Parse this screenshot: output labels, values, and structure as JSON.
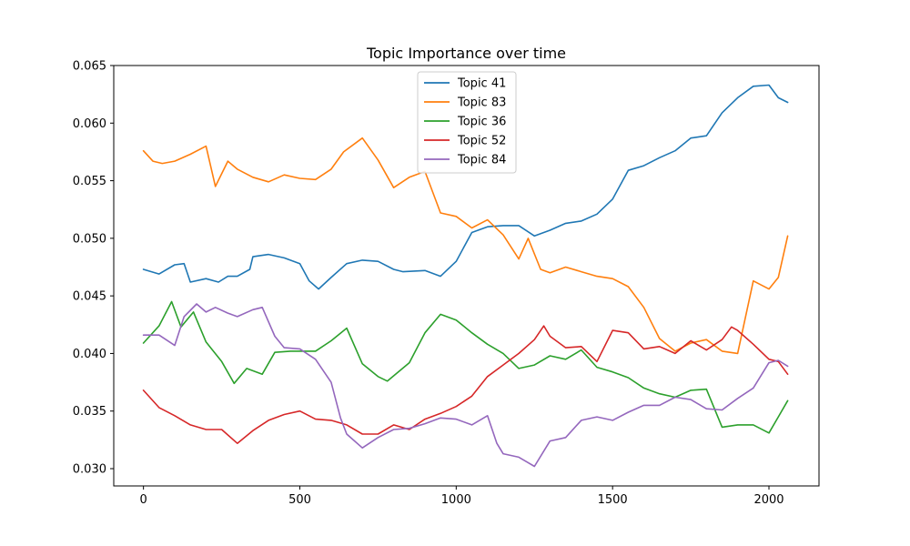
{
  "chart_data": {
    "type": "line",
    "title": "Topic Importance over time",
    "xlabel": "",
    "ylabel": "",
    "xlim": [
      -95,
      2160
    ],
    "ylim": [
      0.0285,
      0.065
    ],
    "x_ticks": [
      0,
      500,
      1000,
      1500,
      2000
    ],
    "y_ticks": [
      0.03,
      0.035,
      0.04,
      0.045,
      0.05,
      0.055,
      0.06,
      0.065
    ],
    "y_tick_labels": [
      "0.030",
      "0.035",
      "0.040",
      "0.045",
      "0.050",
      "0.055",
      "0.060",
      "0.065"
    ],
    "grid": false,
    "legend_position": "top-center",
    "series": [
      {
        "name": "Topic 41",
        "color": "#1f77b4",
        "points": [
          [
            0,
            0.0473
          ],
          [
            50,
            0.0469
          ],
          [
            100,
            0.0477
          ],
          [
            130,
            0.0478
          ],
          [
            150,
            0.0462
          ],
          [
            200,
            0.0465
          ],
          [
            240,
            0.0462
          ],
          [
            270,
            0.0467
          ],
          [
            300,
            0.0467
          ],
          [
            340,
            0.0473
          ],
          [
            350,
            0.0484
          ],
          [
            400,
            0.0486
          ],
          [
            450,
            0.0483
          ],
          [
            500,
            0.0478
          ],
          [
            530,
            0.0463
          ],
          [
            560,
            0.0456
          ],
          [
            600,
            0.0466
          ],
          [
            650,
            0.0478
          ],
          [
            700,
            0.0481
          ],
          [
            750,
            0.048
          ],
          [
            800,
            0.0473
          ],
          [
            830,
            0.0471
          ],
          [
            900,
            0.0472
          ],
          [
            950,
            0.0467
          ],
          [
            1000,
            0.048
          ],
          [
            1050,
            0.0505
          ],
          [
            1100,
            0.051
          ],
          [
            1150,
            0.0511
          ],
          [
            1200,
            0.0511
          ],
          [
            1250,
            0.0502
          ],
          [
            1300,
            0.0507
          ],
          [
            1350,
            0.0513
          ],
          [
            1400,
            0.0515
          ],
          [
            1450,
            0.0521
          ],
          [
            1500,
            0.0534
          ],
          [
            1550,
            0.0559
          ],
          [
            1600,
            0.0563
          ],
          [
            1650,
            0.057
          ],
          [
            1700,
            0.0576
          ],
          [
            1750,
            0.0587
          ],
          [
            1800,
            0.0589
          ],
          [
            1850,
            0.0609
          ],
          [
            1900,
            0.0622
          ],
          [
            1950,
            0.0632
          ],
          [
            2000,
            0.0633
          ],
          [
            2030,
            0.0622
          ],
          [
            2060,
            0.0618
          ]
        ]
      },
      {
        "name": "Topic 83",
        "color": "#ff7f0e",
        "points": [
          [
            0,
            0.0576
          ],
          [
            30,
            0.0567
          ],
          [
            60,
            0.0565
          ],
          [
            100,
            0.0567
          ],
          [
            150,
            0.0573
          ],
          [
            200,
            0.058
          ],
          [
            230,
            0.0545
          ],
          [
            270,
            0.0567
          ],
          [
            300,
            0.056
          ],
          [
            350,
            0.0553
          ],
          [
            400,
            0.0549
          ],
          [
            450,
            0.0555
          ],
          [
            500,
            0.0552
          ],
          [
            550,
            0.0551
          ],
          [
            600,
            0.056
          ],
          [
            640,
            0.0575
          ],
          [
            700,
            0.0587
          ],
          [
            750,
            0.0568
          ],
          [
            800,
            0.0544
          ],
          [
            850,
            0.0553
          ],
          [
            900,
            0.0558
          ],
          [
            950,
            0.0522
          ],
          [
            1000,
            0.0519
          ],
          [
            1050,
            0.0509
          ],
          [
            1100,
            0.0516
          ],
          [
            1150,
            0.0503
          ],
          [
            1200,
            0.0482
          ],
          [
            1230,
            0.05
          ],
          [
            1270,
            0.0473
          ],
          [
            1300,
            0.047
          ],
          [
            1350,
            0.0475
          ],
          [
            1400,
            0.0471
          ],
          [
            1450,
            0.0467
          ],
          [
            1500,
            0.0465
          ],
          [
            1550,
            0.0458
          ],
          [
            1600,
            0.044
          ],
          [
            1650,
            0.0413
          ],
          [
            1700,
            0.0402
          ],
          [
            1750,
            0.0409
          ],
          [
            1800,
            0.0412
          ],
          [
            1850,
            0.0402
          ],
          [
            1900,
            0.04
          ],
          [
            1950,
            0.0463
          ],
          [
            2000,
            0.0456
          ],
          [
            2030,
            0.0466
          ],
          [
            2060,
            0.0502
          ]
        ]
      },
      {
        "name": "Topic 36",
        "color": "#2ca02c",
        "points": [
          [
            0,
            0.0409
          ],
          [
            50,
            0.0424
          ],
          [
            90,
            0.0445
          ],
          [
            120,
            0.0423
          ],
          [
            160,
            0.0436
          ],
          [
            200,
            0.041
          ],
          [
            250,
            0.0393
          ],
          [
            290,
            0.0374
          ],
          [
            330,
            0.0387
          ],
          [
            380,
            0.0382
          ],
          [
            420,
            0.0401
          ],
          [
            470,
            0.0402
          ],
          [
            500,
            0.0402
          ],
          [
            550,
            0.0402
          ],
          [
            600,
            0.0411
          ],
          [
            650,
            0.0422
          ],
          [
            700,
            0.0391
          ],
          [
            750,
            0.038
          ],
          [
            780,
            0.0376
          ],
          [
            850,
            0.0392
          ],
          [
            900,
            0.0418
          ],
          [
            950,
            0.0434
          ],
          [
            1000,
            0.0429
          ],
          [
            1050,
            0.0418
          ],
          [
            1100,
            0.0408
          ],
          [
            1150,
            0.04
          ],
          [
            1200,
            0.0387
          ],
          [
            1250,
            0.039
          ],
          [
            1300,
            0.0398
          ],
          [
            1350,
            0.0395
          ],
          [
            1400,
            0.0403
          ],
          [
            1450,
            0.0388
          ],
          [
            1500,
            0.0384
          ],
          [
            1550,
            0.0379
          ],
          [
            1600,
            0.037
          ],
          [
            1650,
            0.0365
          ],
          [
            1700,
            0.0362
          ],
          [
            1750,
            0.0368
          ],
          [
            1800,
            0.0369
          ],
          [
            1850,
            0.0336
          ],
          [
            1900,
            0.0338
          ],
          [
            1950,
            0.0338
          ],
          [
            2000,
            0.0331
          ],
          [
            2030,
            0.0345
          ],
          [
            2060,
            0.0359
          ]
        ]
      },
      {
        "name": "Topic 52",
        "color": "#d62728",
        "points": [
          [
            0,
            0.0368
          ],
          [
            50,
            0.0353
          ],
          [
            100,
            0.0346
          ],
          [
            150,
            0.0338
          ],
          [
            200,
            0.0334
          ],
          [
            250,
            0.0334
          ],
          [
            300,
            0.0322
          ],
          [
            350,
            0.0333
          ],
          [
            400,
            0.0342
          ],
          [
            450,
            0.0347
          ],
          [
            500,
            0.035
          ],
          [
            550,
            0.0343
          ],
          [
            600,
            0.0342
          ],
          [
            650,
            0.0338
          ],
          [
            700,
            0.033
          ],
          [
            750,
            0.033
          ],
          [
            800,
            0.0338
          ],
          [
            850,
            0.0334
          ],
          [
            900,
            0.0343
          ],
          [
            950,
            0.0348
          ],
          [
            1000,
            0.0354
          ],
          [
            1050,
            0.0363
          ],
          [
            1100,
            0.038
          ],
          [
            1150,
            0.039
          ],
          [
            1200,
            0.04
          ],
          [
            1250,
            0.0412
          ],
          [
            1280,
            0.0424
          ],
          [
            1300,
            0.0415
          ],
          [
            1350,
            0.0405
          ],
          [
            1400,
            0.0406
          ],
          [
            1450,
            0.0393
          ],
          [
            1500,
            0.042
          ],
          [
            1550,
            0.0418
          ],
          [
            1600,
            0.0404
          ],
          [
            1650,
            0.0406
          ],
          [
            1700,
            0.04
          ],
          [
            1750,
            0.0411
          ],
          [
            1800,
            0.0403
          ],
          [
            1850,
            0.0412
          ],
          [
            1880,
            0.0423
          ],
          [
            1900,
            0.042
          ],
          [
            1950,
            0.0408
          ],
          [
            2000,
            0.0395
          ],
          [
            2030,
            0.0393
          ],
          [
            2060,
            0.0382
          ]
        ]
      },
      {
        "name": "Topic 84",
        "color": "#9467bd",
        "points": [
          [
            0,
            0.0416
          ],
          [
            50,
            0.0416
          ],
          [
            100,
            0.0407
          ],
          [
            130,
            0.0432
          ],
          [
            170,
            0.0443
          ],
          [
            200,
            0.0436
          ],
          [
            230,
            0.044
          ],
          [
            270,
            0.0435
          ],
          [
            300,
            0.0432
          ],
          [
            350,
            0.0438
          ],
          [
            380,
            0.044
          ],
          [
            420,
            0.0415
          ],
          [
            450,
            0.0405
          ],
          [
            500,
            0.0404
          ],
          [
            550,
            0.0395
          ],
          [
            600,
            0.0375
          ],
          [
            630,
            0.0344
          ],
          [
            650,
            0.033
          ],
          [
            700,
            0.0318
          ],
          [
            750,
            0.0327
          ],
          [
            800,
            0.0334
          ],
          [
            850,
            0.0335
          ],
          [
            900,
            0.0339
          ],
          [
            950,
            0.0344
          ],
          [
            1000,
            0.0343
          ],
          [
            1050,
            0.0338
          ],
          [
            1100,
            0.0346
          ],
          [
            1130,
            0.0322
          ],
          [
            1150,
            0.0313
          ],
          [
            1200,
            0.031
          ],
          [
            1250,
            0.0302
          ],
          [
            1300,
            0.0324
          ],
          [
            1350,
            0.0327
          ],
          [
            1400,
            0.0342
          ],
          [
            1450,
            0.0345
          ],
          [
            1500,
            0.0342
          ],
          [
            1550,
            0.0349
          ],
          [
            1600,
            0.0355
          ],
          [
            1650,
            0.0355
          ],
          [
            1700,
            0.0362
          ],
          [
            1750,
            0.036
          ],
          [
            1800,
            0.0352
          ],
          [
            1850,
            0.0351
          ],
          [
            1900,
            0.0361
          ],
          [
            1950,
            0.037
          ],
          [
            2000,
            0.0392
          ],
          [
            2030,
            0.0394
          ],
          [
            2060,
            0.0389
          ]
        ]
      }
    ]
  }
}
